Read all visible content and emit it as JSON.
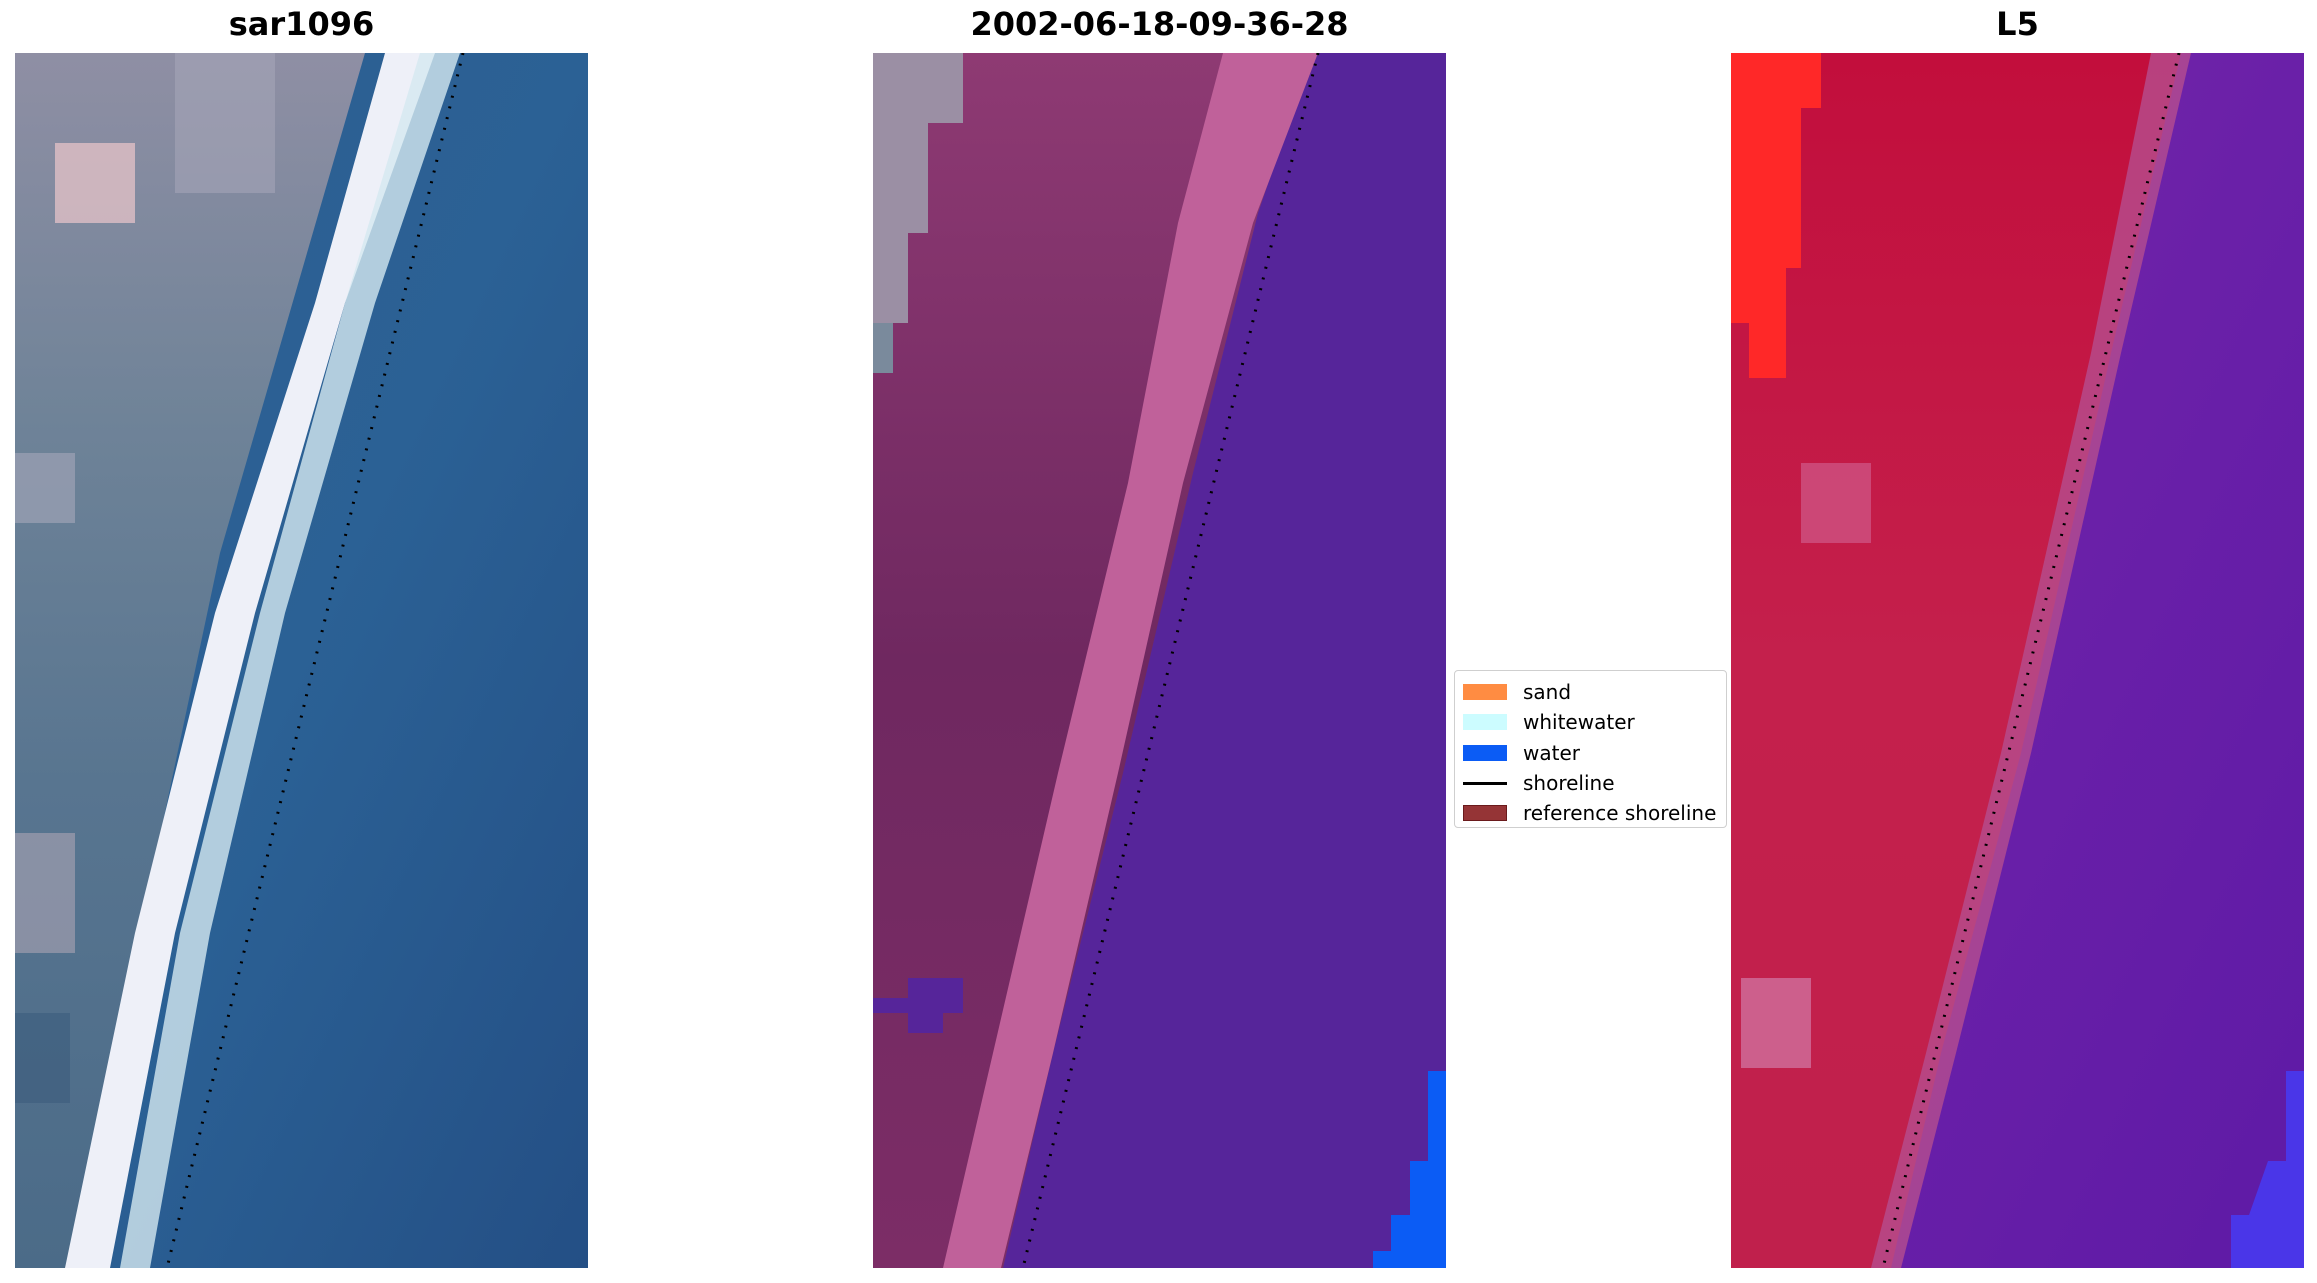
{
  "panels": [
    {
      "title": "sar1096",
      "kind": "rgb-image"
    },
    {
      "title": "2002-06-18-09-36-28",
      "kind": "classified-image"
    },
    {
      "title": "L5",
      "kind": "index-image"
    }
  ],
  "legend": {
    "items": [
      {
        "label": "sand",
        "color": "#ff8c42",
        "style": "patch"
      },
      {
        "label": "whitewater",
        "color": "#ccfcff",
        "style": "patch"
      },
      {
        "label": "water",
        "color": "#0b5cf5",
        "style": "patch"
      },
      {
        "label": "shoreline",
        "color": "#000000",
        "style": "line"
      },
      {
        "label": "reference shoreline",
        "color": "#953436",
        "style": "patch"
      }
    ]
  },
  "colors": {
    "rgb_water": "#2c5a8c",
    "rgb_land": "#5e7891",
    "rgb_beach": "#e8eaf4",
    "class_land": "#7a2c66",
    "class_beach": "#c0619a",
    "class_water": "#56259a",
    "class_water_blue": "#0b5cf5",
    "index_land": "#c31f4c",
    "index_water": "#6a20a8",
    "index_red": "#ff2424"
  }
}
